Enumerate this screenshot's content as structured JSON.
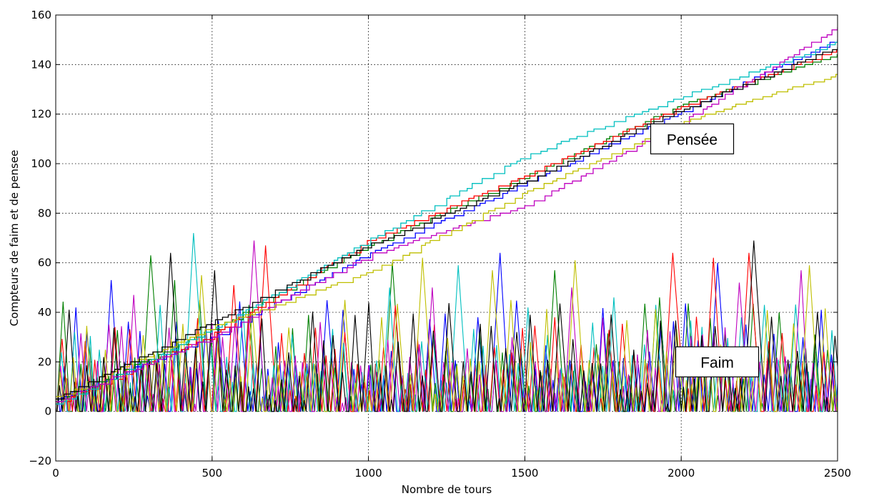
{
  "chart_data": {
    "type": "line",
    "xlabel": "Nombre de tours",
    "ylabel": "Compteurs de faim et de pensee",
    "xlim": [
      0,
      2500
    ],
    "ylim": [
      -20,
      160
    ],
    "xticks": [
      0,
      500,
      1000,
      1500,
      2000,
      2500
    ],
    "yticks": [
      -20,
      0,
      20,
      40,
      60,
      80,
      100,
      120,
      140,
      160
    ],
    "grid": true,
    "annotations": [
      {
        "text": "Pensée",
        "x": 2035,
        "y": 110
      },
      {
        "text": "Faim",
        "x": 2115,
        "y": 20
      }
    ],
    "series": [
      {
        "color": "#0000ff",
        "thinking": [
          [
            0,
            5
          ],
          [
            500,
            30
          ],
          [
            1000,
            64
          ],
          [
            1500,
            92
          ],
          [
            2000,
            121
          ],
          [
            2500,
            150
          ]
        ],
        "hunger_peaks": [
          [
            45,
            42
          ],
          [
            165,
            53
          ],
          [
            480,
            46
          ],
          [
            890,
            41
          ],
          [
            1400,
            64
          ],
          [
            1900,
            62
          ],
          [
            2100,
            60
          ],
          [
            2420,
            41
          ],
          [
            2490,
            45
          ]
        ]
      },
      {
        "color": "#007f00",
        "thinking": [
          [
            0,
            4
          ],
          [
            500,
            33
          ],
          [
            1000,
            67
          ],
          [
            1500,
            95
          ],
          [
            2000,
            124
          ],
          [
            2500,
            144
          ]
        ],
        "hunger_peaks": [
          [
            280,
            63
          ],
          [
            360,
            53
          ],
          [
            610,
            43
          ],
          [
            1050,
            60
          ],
          [
            1560,
            57
          ],
          [
            1920,
            46
          ],
          [
            2300,
            40
          ],
          [
            2430,
            53
          ]
        ]
      },
      {
        "color": "#ff0000",
        "thinking": [
          [
            0,
            3
          ],
          [
            500,
            31
          ],
          [
            1000,
            69
          ],
          [
            1500,
            95
          ],
          [
            2000,
            123
          ],
          [
            2500,
            146
          ]
        ],
        "hunger_peaks": [
          [
            130,
            53
          ],
          [
            190,
            43
          ],
          [
            550,
            51
          ],
          [
            645,
            67
          ],
          [
            1460,
            44
          ],
          [
            1940,
            64
          ],
          [
            2070,
            62
          ],
          [
            2190,
            64
          ]
        ]
      },
      {
        "color": "#00bfbf",
        "thinking": [
          [
            0,
            3
          ],
          [
            500,
            33
          ],
          [
            1000,
            69
          ],
          [
            1500,
            103
          ],
          [
            2000,
            127
          ],
          [
            2500,
            149
          ]
        ],
        "hunger_peaks": [
          [
            395,
            72
          ],
          [
            310,
            43
          ],
          [
            1040,
            50
          ],
          [
            1260,
            59
          ],
          [
            1510,
            46
          ],
          [
            1760,
            46
          ],
          [
            2240,
            43
          ]
        ]
      },
      {
        "color": "#bf00bf",
        "thinking": [
          [
            0,
            4
          ],
          [
            500,
            30
          ],
          [
            1000,
            63
          ],
          [
            1500,
            83
          ],
          [
            2000,
            117
          ],
          [
            2500,
            155
          ]
        ],
        "hunger_peaks": [
          [
            220,
            47
          ],
          [
            605,
            69
          ],
          [
            1190,
            50
          ],
          [
            1620,
            50
          ],
          [
            2000,
            60
          ],
          [
            2150,
            52
          ],
          [
            2350,
            57
          ]
        ]
      },
      {
        "color": "#bfbf00",
        "thinking": [
          [
            0,
            6
          ],
          [
            500,
            34
          ],
          [
            1000,
            56
          ],
          [
            1500,
            88
          ],
          [
            2000,
            117
          ],
          [
            2500,
            136
          ]
        ],
        "hunger_peaks": [
          [
            445,
            55
          ],
          [
            900,
            45
          ],
          [
            1150,
            62
          ],
          [
            1360,
            57
          ],
          [
            1630,
            61
          ],
          [
            2390,
            59
          ]
        ]
      },
      {
        "color": "#000000",
        "thinking": [
          [
            0,
            5
          ],
          [
            500,
            36
          ],
          [
            1000,
            67
          ],
          [
            1500,
            93
          ],
          [
            2000,
            122
          ],
          [
            2500,
            147
          ]
        ],
        "hunger_peaks": [
          [
            330,
            64
          ],
          [
            485,
            57
          ],
          [
            975,
            44
          ],
          [
            1515,
            61
          ],
          [
            1850,
            44
          ],
          [
            2195,
            69
          ],
          [
            2440,
            40
          ]
        ]
      }
    ]
  }
}
